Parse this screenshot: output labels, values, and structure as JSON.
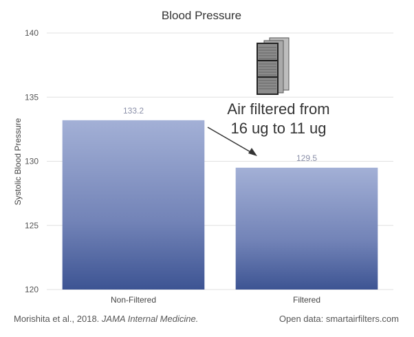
{
  "chart_data": {
    "type": "bar",
    "title": "Blood Pressure",
    "ylabel": "Systolic Blood Pressure",
    "xlabel": "",
    "categories": [
      "Non-Filtered",
      "Filtered"
    ],
    "values": [
      133.2,
      129.5
    ],
    "data_labels": [
      "133.2",
      "129.5"
    ],
    "ylim": [
      120,
      140
    ],
    "yticks": [
      120,
      125,
      130,
      135,
      140
    ],
    "grid": true,
    "legend": "none",
    "annotation": {
      "lines": [
        "Air filtered from",
        "16 ug to 11 ug"
      ],
      "arrow": true,
      "icon": "air-filter-icon"
    },
    "colors": {
      "bar_top": "#a3b0d6",
      "bar_bottom": "#3d5493",
      "grid": "#e0e0e0",
      "axis_text": "#555555",
      "data_label": "#8a8fa8"
    }
  },
  "footer": {
    "citation_prefix": "Morishita et al., 2018. ",
    "citation_journal": "JAMA Internal Medicine.",
    "source": "Open data: smartairfilters.com"
  }
}
